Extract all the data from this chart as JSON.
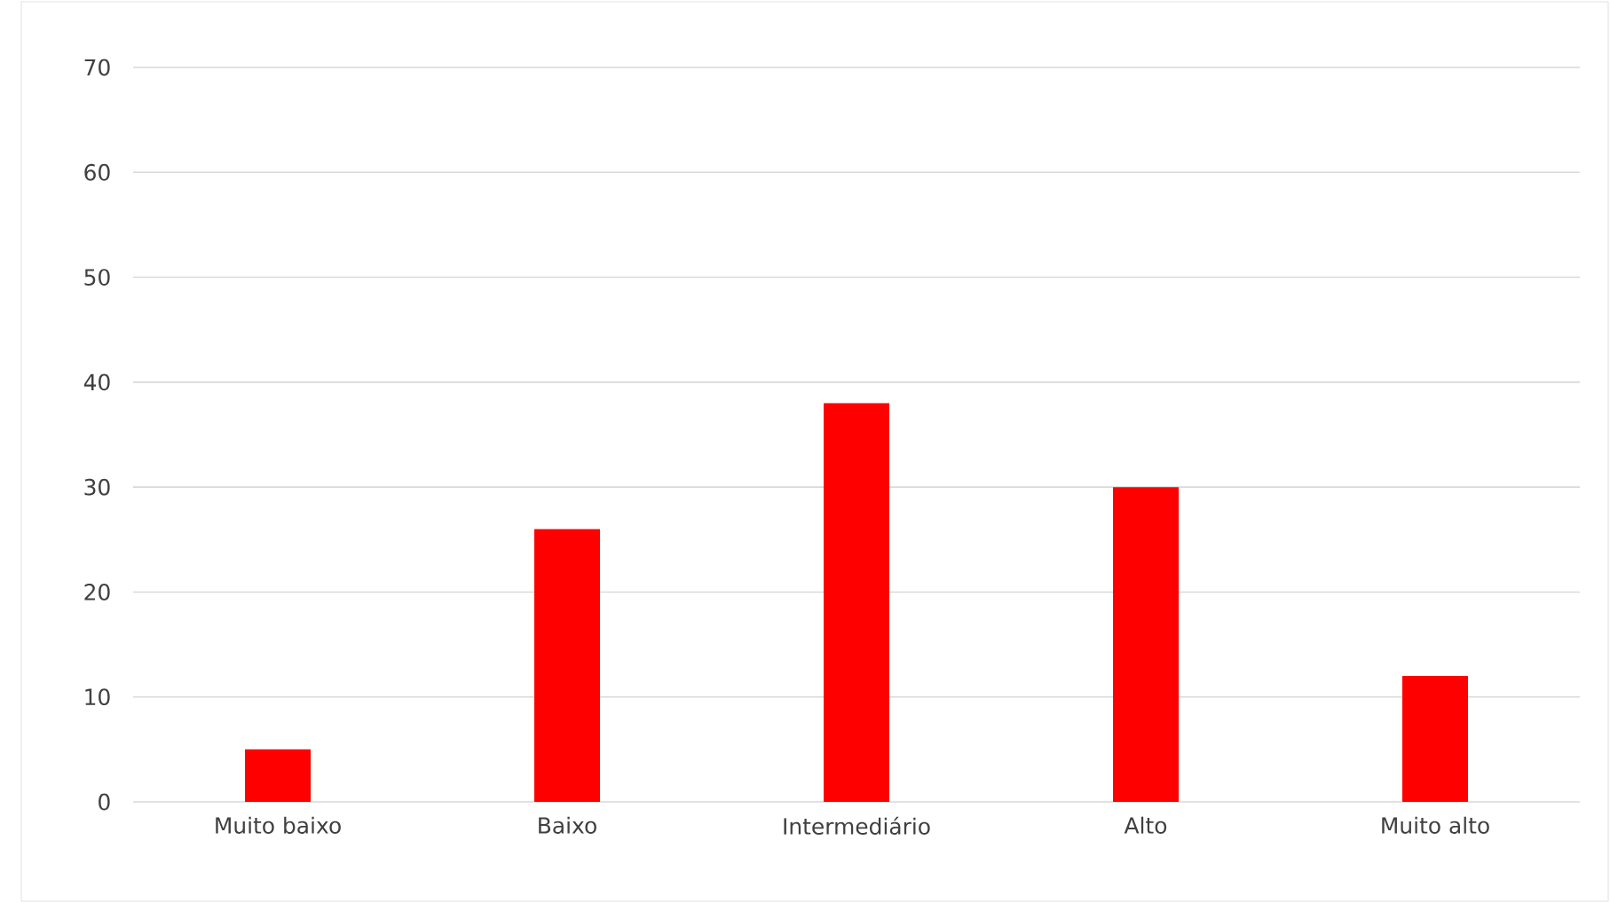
{
  "chart_data": {
    "type": "bar",
    "categories": [
      "Muito baixo",
      "Baixo",
      "Intermediário",
      "Alto",
      "Muito alto"
    ],
    "values": [
      5,
      26,
      38,
      30,
      12
    ],
    "color": "#ff0000",
    "ylim": [
      0,
      70
    ],
    "yticks": [
      0,
      10,
      20,
      30,
      40,
      50,
      60,
      70
    ],
    "grid": "y"
  }
}
